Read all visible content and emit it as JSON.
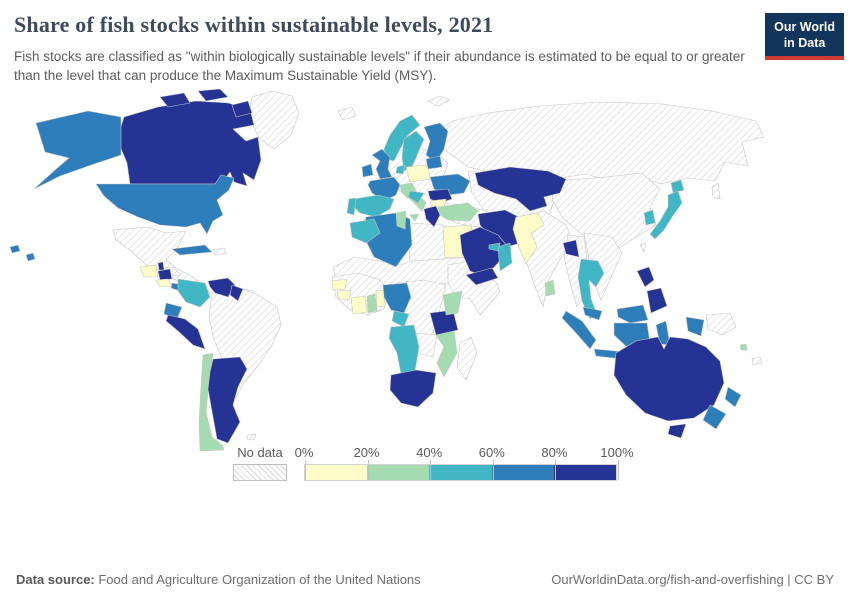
{
  "header": {
    "title": "Share of fish stocks within sustainable levels, 2021",
    "logo": {
      "line1": "Our World",
      "line2": "in Data",
      "bg": "#12355b",
      "accent": "#d23b34"
    }
  },
  "subtitle": "Fish stocks are classified as \"within biologically sustainable levels\" if their abundance is estimated to be equal to or greater than the level that can produce the Maximum Sustainable Yield (MSY).",
  "legend": {
    "no_data_label": "No data",
    "ticks": [
      "0%",
      "20%",
      "40%",
      "60%",
      "80%",
      "100%"
    ],
    "bins": [
      {
        "range": "0-20%",
        "color": "#fefcc8"
      },
      {
        "range": "20-40%",
        "color": "#a5dbb0"
      },
      {
        "range": "40-60%",
        "color": "#41b6c4"
      },
      {
        "range": "60-80%",
        "color": "#2e7ebc"
      },
      {
        "range": "80-100%",
        "color": "#253494"
      }
    ],
    "no_data_border": "#bdbdbd"
  },
  "footer": {
    "source_label": "Data source:",
    "source_text": " Food and Agriculture Organization of the United Nations",
    "right_text": "OurWorldinData.org/fish-and-overfishing | CC BY"
  },
  "chart_data": {
    "type": "choropleth_map",
    "title": "Share of fish stocks within sustainable levels, 2021",
    "unit": "% of fish stocks",
    "bins": [
      "0-20%",
      "20-40%",
      "40-60%",
      "60-80%",
      "80-100%",
      "No data"
    ],
    "countries": [
      {
        "id": "canada",
        "name": "Canada",
        "bin": "80-100%"
      },
      {
        "id": "united-states",
        "name": "United States",
        "bin": "60-80%"
      },
      {
        "id": "greenland",
        "name": "Greenland",
        "bin": "No data"
      },
      {
        "id": "iceland",
        "name": "Iceland",
        "bin": "No data"
      },
      {
        "id": "mexico",
        "name": "Mexico",
        "bin": "No data"
      },
      {
        "id": "guatemala",
        "name": "Guatemala",
        "bin": "0-20%"
      },
      {
        "id": "belize",
        "name": "Belize",
        "bin": "80-100%"
      },
      {
        "id": "honduras",
        "name": "Honduras",
        "bin": "No data"
      },
      {
        "id": "nicaragua",
        "name": "Nicaragua",
        "bin": "80-100%"
      },
      {
        "id": "costa-rica",
        "name": "Costa Rica",
        "bin": "0-20%"
      },
      {
        "id": "panama",
        "name": "Panama",
        "bin": "60-80%"
      },
      {
        "id": "cuba",
        "name": "Cuba",
        "bin": "60-80%"
      },
      {
        "id": "hispaniola",
        "name": "Haiti and Dominican Republic",
        "bin": "No data"
      },
      {
        "id": "colombia",
        "name": "Colombia",
        "bin": "40-60%"
      },
      {
        "id": "venezuela",
        "name": "Venezuela",
        "bin": "80-100%"
      },
      {
        "id": "guyana",
        "name": "Guyana",
        "bin": "80-100%"
      },
      {
        "id": "suriname",
        "name": "Suriname and French Guiana",
        "bin": "No data"
      },
      {
        "id": "ecuador",
        "name": "Ecuador",
        "bin": "60-80%"
      },
      {
        "id": "peru",
        "name": "Peru",
        "bin": "80-100%"
      },
      {
        "id": "brazil",
        "name": "Brazil",
        "bin": "No data"
      },
      {
        "id": "chile",
        "name": "Chile",
        "bin": "20-40%"
      },
      {
        "id": "argentina",
        "name": "Argentina",
        "bin": "80-100%"
      },
      {
        "id": "falkland-islands",
        "name": "Falkland Islands",
        "bin": "No data"
      },
      {
        "id": "united-kingdom",
        "name": "United Kingdom",
        "bin": "60-80%"
      },
      {
        "id": "ireland",
        "name": "Ireland",
        "bin": "60-80%"
      },
      {
        "id": "norway",
        "name": "Norway",
        "bin": "40-60%"
      },
      {
        "id": "sweden",
        "name": "Sweden",
        "bin": "40-60%"
      },
      {
        "id": "finland",
        "name": "Finland",
        "bin": "60-80%"
      },
      {
        "id": "denmark",
        "name": "Denmark",
        "bin": "40-60%"
      },
      {
        "id": "baltic-states",
        "name": "Baltic states",
        "bin": "60-80%"
      },
      {
        "id": "poland",
        "name": "Poland",
        "bin": "0-20%"
      },
      {
        "id": "central-europe",
        "name": "Germany and Central Europe",
        "bin": "No data"
      },
      {
        "id": "france",
        "name": "France",
        "bin": "60-80%"
      },
      {
        "id": "spain",
        "name": "Spain",
        "bin": "40-60%"
      },
      {
        "id": "portugal",
        "name": "Portugal",
        "bin": "40-60%"
      },
      {
        "id": "italy",
        "name": "Italy",
        "bin": "20-40%"
      },
      {
        "id": "croatia",
        "name": "Croatia",
        "bin": "40-60%"
      },
      {
        "id": "ukraine",
        "name": "Ukraine",
        "bin": "60-80%"
      },
      {
        "id": "romania",
        "name": "Romania",
        "bin": "80-100%"
      },
      {
        "id": "bulgaria",
        "name": "Bulgaria",
        "bin": "0-20%"
      },
      {
        "id": "greece",
        "name": "Greece",
        "bin": "80-100%"
      },
      {
        "id": "turkey",
        "name": "Turkey",
        "bin": "20-40%"
      },
      {
        "id": "russia",
        "name": "Russia",
        "bin": "No data"
      },
      {
        "id": "svalbard",
        "name": "Svalbard",
        "bin": "No data"
      },
      {
        "id": "kazakhstan",
        "name": "Kazakhstan",
        "bin": "80-100%"
      },
      {
        "id": "central-asia",
        "name": "Central Asia",
        "bin": "No data"
      },
      {
        "id": "iraq-syria",
        "name": "Iraq and Syria",
        "bin": "No data"
      },
      {
        "id": "iran",
        "name": "Iran",
        "bin": "80-100%"
      },
      {
        "id": "saudi-arabia",
        "name": "Saudi Arabia",
        "bin": "80-100%"
      },
      {
        "id": "yemen",
        "name": "Yemen",
        "bin": "80-100%"
      },
      {
        "id": "oman",
        "name": "Oman",
        "bin": "40-60%"
      },
      {
        "id": "uae",
        "name": "United Arab Emirates",
        "bin": "40-60%"
      },
      {
        "id": "pakistan",
        "name": "Pakistan",
        "bin": "0-20%"
      },
      {
        "id": "india",
        "name": "India",
        "bin": "No data"
      },
      {
        "id": "sri-lanka",
        "name": "Sri Lanka",
        "bin": "20-40%"
      },
      {
        "id": "bangladesh",
        "name": "Bangladesh",
        "bin": "80-100%"
      },
      {
        "id": "china",
        "name": "China",
        "bin": "No data"
      },
      {
        "id": "myanmar",
        "name": "Myanmar",
        "bin": "No data"
      },
      {
        "id": "indochina",
        "name": "Vietnam, Laos and Cambodia",
        "bin": "No data"
      },
      {
        "id": "thailand",
        "name": "Thailand",
        "bin": "40-60%"
      },
      {
        "id": "malaysia",
        "name": "Malaysia",
        "bin": "60-80%"
      },
      {
        "id": "indonesia",
        "name": "Indonesia",
        "bin": "60-80%"
      },
      {
        "id": "philippines",
        "name": "Philippines",
        "bin": "80-100%"
      },
      {
        "id": "japan",
        "name": "Japan",
        "bin": "40-60%"
      },
      {
        "id": "south-korea",
        "name": "South Korea",
        "bin": "40-60%"
      },
      {
        "id": "taiwan",
        "name": "Taiwan",
        "bin": "No data"
      },
      {
        "id": "sakhalin",
        "name": "Sakhalin",
        "bin": "No data"
      },
      {
        "id": "papua-new-guinea",
        "name": "Papua New Guinea",
        "bin": "No data"
      },
      {
        "id": "australia",
        "name": "Australia",
        "bin": "80-100%"
      },
      {
        "id": "new-zealand",
        "name": "New Zealand",
        "bin": "60-80%"
      },
      {
        "id": "fiji",
        "name": "Fiji",
        "bin": "20-40%"
      },
      {
        "id": "new-caledonia",
        "name": "New Caledonia",
        "bin": "No data"
      },
      {
        "id": "morocco",
        "name": "Morocco",
        "bin": "40-60%"
      },
      {
        "id": "algeria",
        "name": "Algeria",
        "bin": "60-80%"
      },
      {
        "id": "tunisia",
        "name": "Tunisia",
        "bin": "20-40%"
      },
      {
        "id": "libya",
        "name": "Libya",
        "bin": "No data"
      },
      {
        "id": "egypt",
        "name": "Egypt",
        "bin": "0-20%"
      },
      {
        "id": "sahara-countries",
        "name": "Mauritania, Mali, Niger, Chad, Sudan",
        "bin": "No data"
      },
      {
        "id": "senegal",
        "name": "Senegal",
        "bin": "0-20%"
      },
      {
        "id": "guinea",
        "name": "Guinea",
        "bin": "0-20%"
      },
      {
        "id": "cote-divoire",
        "name": "Cote d'Ivoire",
        "bin": "0-20%"
      },
      {
        "id": "ghana",
        "name": "Ghana",
        "bin": "20-40%"
      },
      {
        "id": "benin",
        "name": "Benin and Togo",
        "bin": "0-20%"
      },
      {
        "id": "nigeria",
        "name": "Nigeria",
        "bin": "60-80%"
      },
      {
        "id": "west-africa",
        "name": "West Africa interior",
        "bin": "No data"
      },
      {
        "id": "central-africa",
        "name": "Central Africa (DR Congo)",
        "bin": "No data"
      },
      {
        "id": "gabon-congo",
        "name": "Gabon and Congo",
        "bin": "40-60%"
      },
      {
        "id": "angola-namibia",
        "name": "Angola and Namibia",
        "bin": "40-60%"
      },
      {
        "id": "zambia-zimbabwe",
        "name": "Zambia and Zimbabwe",
        "bin": "No data"
      },
      {
        "id": "south-africa",
        "name": "South Africa",
        "bin": "80-100%"
      },
      {
        "id": "mozambique",
        "name": "Mozambique",
        "bin": "20-40%"
      },
      {
        "id": "madagascar",
        "name": "Madagascar",
        "bin": "No data"
      },
      {
        "id": "tanzania",
        "name": "Tanzania",
        "bin": "80-100%"
      },
      {
        "id": "kenya",
        "name": "Kenya",
        "bin": "20-40%"
      },
      {
        "id": "horn-of-africa",
        "name": "Ethiopia and Somalia",
        "bin": "No data"
      }
    ]
  }
}
